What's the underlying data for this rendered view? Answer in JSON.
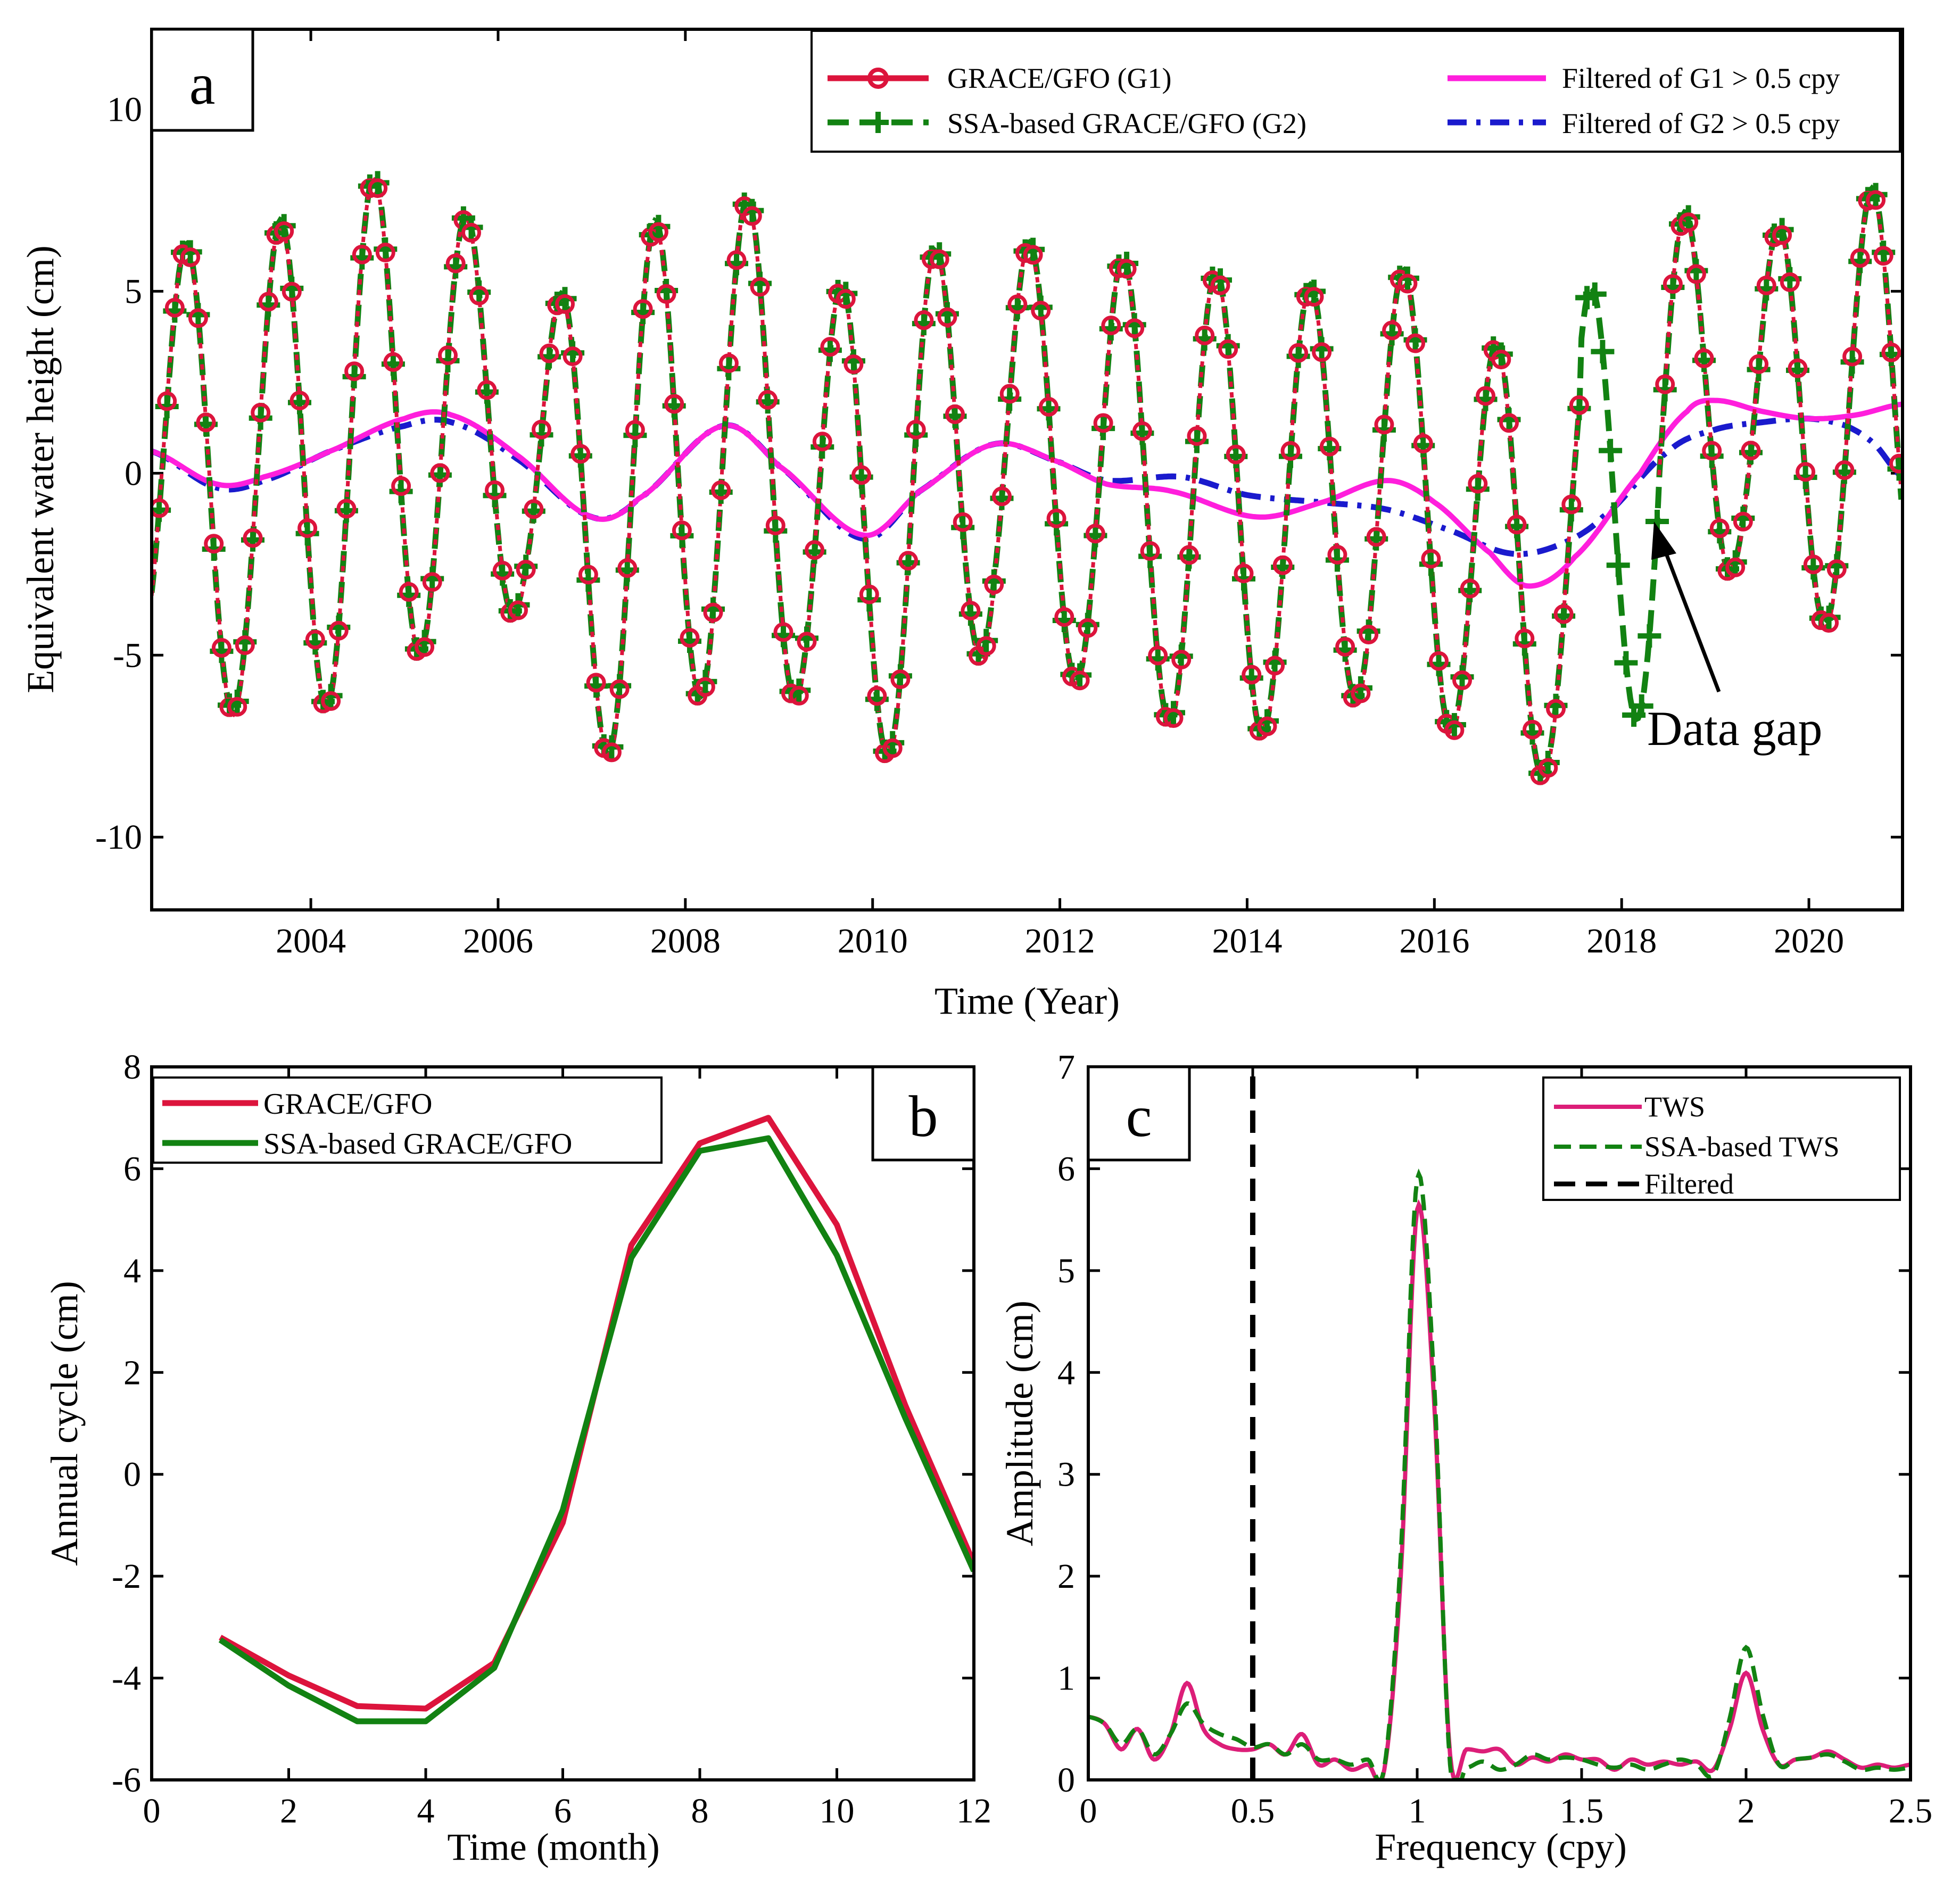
{
  "colors": {
    "grace": "#dc143c",
    "ssa": "#128212",
    "filtered_g1": "#ff1edc",
    "filtered_g2": "#1a1acd",
    "cutoff": "#000000",
    "tws": "#dc1e78"
  },
  "chart_data": [
    {
      "id": "a",
      "type": "line",
      "panel_label": "a",
      "xlabel": "Time (Year)",
      "ylabel": "Equivalent water height (cm)",
      "xlim": [
        2002.3,
        2021.0
      ],
      "ylim": [
        -12,
        12.2
      ],
      "xticks": [
        2004,
        2006,
        2008,
        2010,
        2012,
        2014,
        2016,
        2018,
        2020
      ],
      "xtick_labels": [
        "2004",
        "2006",
        "2008",
        "2010",
        "2012",
        "2014",
        "2016",
        "2018",
        "2020"
      ],
      "yticks": [
        -10,
        -5,
        0,
        5,
        10
      ],
      "ytick_labels": [
        "-10",
        "-5",
        "0",
        "5",
        "10"
      ],
      "legend_location": "top-right",
      "legend": {
        "g1": "GRACE/GFO (G1)",
        "g2": "SSA-based GRACE/GFO (G2)",
        "f1": "Filtered of  G1 > 0.5 cpy",
        "f2": "Filtered of G2 > 0.5 cpy"
      },
      "annotation": {
        "text": "Data gap",
        "x": 2018.15,
        "y": -1.8
      },
      "gap": [
        2017.55,
        2018.4
      ],
      "model": {
        "annual_amplitude_g1": [
          [
            2002.3,
            5.8
          ],
          [
            2003.3,
            6.5
          ],
          [
            2004.3,
            7.2
          ],
          [
            2005.3,
            6.5
          ],
          [
            2006.3,
            4.2
          ],
          [
            2007.3,
            7.2
          ],
          [
            2008.3,
            7.0
          ],
          [
            2009.3,
            6.0
          ],
          [
            2010.3,
            6.8
          ],
          [
            2011.3,
            5.5
          ],
          [
            2012.3,
            6.0
          ],
          [
            2013.3,
            6.5
          ],
          [
            2014.3,
            6.0
          ],
          [
            2015.3,
            5.8
          ],
          [
            2016.3,
            6.0
          ],
          [
            2017.3,
            5.5
          ],
          [
            2018.3,
            6.0
          ],
          [
            2019.3,
            4.5
          ],
          [
            2020.3,
            6.0
          ],
          [
            2021.0,
            6.0
          ]
        ],
        "ssa_gap_annual_amplitude": 6.5,
        "filtered_g1": [
          [
            2002.3,
            0.6
          ],
          [
            2003.0,
            -0.3
          ],
          [
            2003.5,
            -0.1
          ],
          [
            2004.2,
            0.6
          ],
          [
            2005.0,
            1.5
          ],
          [
            2005.5,
            1.6
          ],
          [
            2006.2,
            0.5
          ],
          [
            2007.0,
            -1.2
          ],
          [
            2007.5,
            -0.7
          ],
          [
            2008.4,
            1.3
          ],
          [
            2009.0,
            0.2
          ],
          [
            2009.9,
            -1.7
          ],
          [
            2010.5,
            -0.5
          ],
          [
            2011.3,
            0.8
          ],
          [
            2012.0,
            0.3
          ],
          [
            2012.5,
            -0.3
          ],
          [
            2013.2,
            -0.5
          ],
          [
            2014.1,
            -1.2
          ],
          [
            2014.8,
            -0.8
          ],
          [
            2015.5,
            -0.2
          ],
          [
            2016.0,
            -0.8
          ],
          [
            2016.6,
            -2.2
          ],
          [
            2017.0,
            -3.1
          ],
          [
            2017.5,
            -2.3
          ],
          [
            2018.2,
            0.0
          ],
          [
            2018.7,
            1.7
          ],
          [
            2019.0,
            2.0
          ],
          [
            2019.5,
            1.7
          ],
          [
            2020.0,
            1.5
          ],
          [
            2020.5,
            1.6
          ],
          [
            2021.0,
            1.9
          ]
        ],
        "filtered_g2": [
          [
            2002.3,
            0.6
          ],
          [
            2003.0,
            -0.4
          ],
          [
            2003.5,
            -0.2
          ],
          [
            2004.2,
            0.6
          ],
          [
            2005.0,
            1.3
          ],
          [
            2005.5,
            1.4
          ],
          [
            2006.2,
            0.4
          ],
          [
            2007.0,
            -1.2
          ],
          [
            2007.5,
            -0.7
          ],
          [
            2008.4,
            1.3
          ],
          [
            2009.0,
            0.2
          ],
          [
            2009.9,
            -1.8
          ],
          [
            2010.5,
            -0.5
          ],
          [
            2011.3,
            0.8
          ],
          [
            2012.0,
            0.3
          ],
          [
            2012.5,
            -0.2
          ],
          [
            2013.3,
            -0.1
          ],
          [
            2014.0,
            -0.6
          ],
          [
            2014.8,
            -0.8
          ],
          [
            2015.5,
            -1.0
          ],
          [
            2016.2,
            -1.6
          ],
          [
            2016.8,
            -2.2
          ],
          [
            2017.3,
            -2.0
          ],
          [
            2017.8,
            -1.2
          ],
          [
            2018.5,
            0.6
          ],
          [
            2019.0,
            1.2
          ],
          [
            2019.5,
            1.4
          ],
          [
            2020.0,
            1.5
          ],
          [
            2020.4,
            1.3
          ],
          [
            2020.7,
            0.8
          ],
          [
            2021.0,
            -0.1
          ]
        ]
      }
    },
    {
      "id": "b",
      "type": "line",
      "panel_label": "b",
      "xlabel": "Time (month)",
      "ylabel": "Annual cycle (cm)",
      "xlim": [
        0,
        12
      ],
      "ylim": [
        -6,
        8
      ],
      "xticks": [
        0,
        2,
        4,
        6,
        8,
        10,
        12
      ],
      "xtick_labels": [
        "0",
        "2",
        "4",
        "6",
        "8",
        "10",
        "12"
      ],
      "yticks": [
        -6,
        -4,
        -2,
        0,
        2,
        4,
        6,
        8
      ],
      "ytick_labels": [
        "-6",
        "-4",
        "-2",
        "0",
        "2",
        "4",
        "6",
        "8"
      ],
      "legend_location": "top-left",
      "x": [
        1,
        2,
        3,
        4,
        5,
        6,
        7,
        8,
        9,
        10,
        11,
        12
      ],
      "series": [
        {
          "name": "GRACE/GFO",
          "values": [
            -3.2,
            -3.95,
            -4.55,
            -4.6,
            -3.7,
            -0.95,
            4.5,
            6.5,
            7.0,
            4.9,
            1.35,
            -1.75
          ]
        },
        {
          "name": "SSA-based GRACE/GFO",
          "values": [
            -3.25,
            -4.15,
            -4.85,
            -4.85,
            -3.8,
            -0.7,
            4.25,
            6.35,
            6.6,
            4.3,
            1.1,
            -1.9
          ]
        }
      ]
    },
    {
      "id": "c",
      "type": "line",
      "panel_label": "c",
      "xlabel": "Frequency (cpy)",
      "ylabel": "Amplitude (cm)",
      "xlim": [
        0,
        2.5
      ],
      "ylim": [
        0,
        7
      ],
      "xticks": [
        0,
        0.5,
        1,
        1.5,
        2,
        2.5
      ],
      "xtick_labels": [
        "0",
        "0.5",
        "1",
        "1.5",
        "2",
        "2.5"
      ],
      "yticks": [
        0,
        1,
        2,
        3,
        4,
        5,
        6,
        7
      ],
      "ytick_labels": [
        "0",
        "1",
        "2",
        "3",
        "4",
        "5",
        "6",
        "7"
      ],
      "legend_location": "top-right",
      "cutoff": 0.5,
      "series": [
        {
          "name": "TWS",
          "points": [
            [
              0.0,
              0.62
            ],
            [
              0.05,
              0.55
            ],
            [
              0.1,
              0.3
            ],
            [
              0.15,
              0.5
            ],
            [
              0.2,
              0.2
            ],
            [
              0.25,
              0.45
            ],
            [
              0.3,
              0.95
            ],
            [
              0.35,
              0.5
            ],
            [
              0.4,
              0.35
            ],
            [
              0.45,
              0.3
            ],
            [
              0.5,
              0.3
            ],
            [
              0.55,
              0.35
            ],
            [
              0.6,
              0.25
            ],
            [
              0.65,
              0.45
            ],
            [
              0.7,
              0.15
            ],
            [
              0.75,
              0.2
            ],
            [
              0.8,
              0.1
            ],
            [
              0.85,
              0.15
            ],
            [
              0.9,
              0.1
            ],
            [
              0.95,
              2.0
            ],
            [
              1.0,
              5.6
            ],
            [
              1.05,
              3.8
            ],
            [
              1.1,
              0.25
            ],
            [
              1.15,
              0.3
            ],
            [
              1.2,
              0.28
            ],
            [
              1.25,
              0.3
            ],
            [
              1.3,
              0.15
            ],
            [
              1.35,
              0.22
            ],
            [
              1.4,
              0.18
            ],
            [
              1.45,
              0.25
            ],
            [
              1.5,
              0.2
            ],
            [
              1.55,
              0.2
            ],
            [
              1.6,
              0.1
            ],
            [
              1.65,
              0.2
            ],
            [
              1.7,
              0.15
            ],
            [
              1.75,
              0.18
            ],
            [
              1.8,
              0.15
            ],
            [
              1.85,
              0.18
            ],
            [
              1.9,
              0.1
            ],
            [
              1.95,
              0.5
            ],
            [
              2.0,
              1.05
            ],
            [
              2.05,
              0.5
            ],
            [
              2.1,
              0.15
            ],
            [
              2.15,
              0.2
            ],
            [
              2.2,
              0.22
            ],
            [
              2.25,
              0.28
            ],
            [
              2.3,
              0.2
            ],
            [
              2.35,
              0.12
            ],
            [
              2.4,
              0.15
            ],
            [
              2.45,
              0.12
            ],
            [
              2.5,
              0.15
            ]
          ]
        },
        {
          "name": "SSA-based TWS",
          "points": [
            [
              0.0,
              0.62
            ],
            [
              0.05,
              0.55
            ],
            [
              0.1,
              0.35
            ],
            [
              0.15,
              0.5
            ],
            [
              0.2,
              0.25
            ],
            [
              0.25,
              0.45
            ],
            [
              0.3,
              0.75
            ],
            [
              0.35,
              0.55
            ],
            [
              0.4,
              0.45
            ],
            [
              0.45,
              0.4
            ],
            [
              0.5,
              0.32
            ],
            [
              0.55,
              0.35
            ],
            [
              0.6,
              0.25
            ],
            [
              0.65,
              0.35
            ],
            [
              0.7,
              0.2
            ],
            [
              0.75,
              0.2
            ],
            [
              0.8,
              0.15
            ],
            [
              0.85,
              0.2
            ],
            [
              0.9,
              0.12
            ],
            [
              0.95,
              2.2
            ],
            [
              1.0,
              5.9
            ],
            [
              1.05,
              4.0
            ],
            [
              1.1,
              0.15
            ],
            [
              1.15,
              0.12
            ],
            [
              1.2,
              0.18
            ],
            [
              1.25,
              0.1
            ],
            [
              1.3,
              0.15
            ],
            [
              1.35,
              0.25
            ],
            [
              1.4,
              0.2
            ],
            [
              1.45,
              0.22
            ],
            [
              1.5,
              0.2
            ],
            [
              1.55,
              0.15
            ],
            [
              1.6,
              0.12
            ],
            [
              1.65,
              0.15
            ],
            [
              1.7,
              0.1
            ],
            [
              1.75,
              0.15
            ],
            [
              1.8,
              0.2
            ],
            [
              1.85,
              0.15
            ],
            [
              1.9,
              0.05
            ],
            [
              1.95,
              0.6
            ],
            [
              2.0,
              1.3
            ],
            [
              2.05,
              0.65
            ],
            [
              2.1,
              0.15
            ],
            [
              2.15,
              0.2
            ],
            [
              2.2,
              0.22
            ],
            [
              2.25,
              0.25
            ],
            [
              2.3,
              0.18
            ],
            [
              2.35,
              0.1
            ],
            [
              2.4,
              0.12
            ],
            [
              2.45,
              0.1
            ],
            [
              2.5,
              0.12
            ]
          ]
        },
        {
          "name": "Filtered",
          "points": [
            [
              0.5,
              0
            ],
            [
              0.5,
              7
            ]
          ]
        }
      ]
    }
  ]
}
